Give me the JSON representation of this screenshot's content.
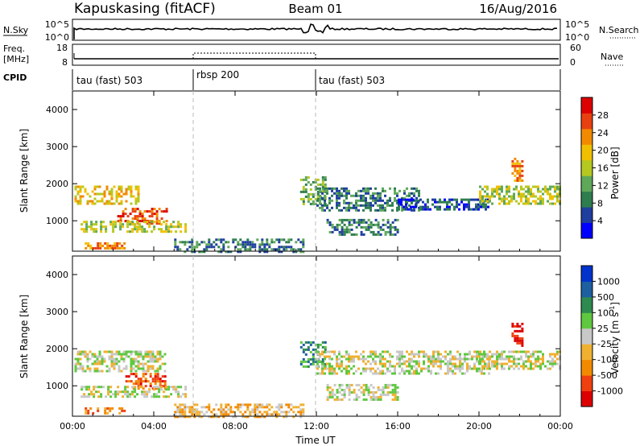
{
  "header": {
    "station": "Kapuskasing (fitACF)",
    "beam": "Beam 01",
    "date": "16/Aug/2016"
  },
  "strips": {
    "nsky_label": "N.Sky",
    "nsky_ticks": [
      "10^5",
      "10^0"
    ],
    "nsearch_label": "N.Search",
    "nsearch_ticks": [
      "10^5",
      "10^0"
    ],
    "freq_label_line1": "Freq.",
    "freq_label_line2": "[MHz]",
    "freq_ticks": [
      "18",
      "8"
    ],
    "nave_label": "Nave",
    "nave_ticks": [
      "60",
      "0"
    ],
    "cpid_label": "CPID",
    "cpid_segments": [
      {
        "label": "tau (fast) 503",
        "start_hour": 0
      },
      {
        "label": "rbsp 200",
        "start_hour": 6
      },
      {
        "label": "tau (fast) 503",
        "start_hour": 12
      }
    ]
  },
  "chart_data": [
    {
      "type": "heatmap",
      "panel": "power",
      "ylabel": "Slant Range [km]",
      "xlabel": "",
      "ylim": [
        180,
        4500
      ],
      "xlim": [
        0,
        24
      ],
      "yticks": [
        "4000",
        "3000",
        "2000",
        "1000"
      ],
      "xticks": [
        "00:00",
        "04:00",
        "08:00",
        "12:00",
        "16:00",
        "20:00",
        "00:00"
      ],
      "colorbar": {
        "label": "Power [dB]",
        "ticks": [
          "28",
          "24",
          "20",
          "16",
          "12",
          "8",
          "4"
        ],
        "colors": [
          "#0000ff",
          "#1e3f9e",
          "#2e7d4f",
          "#5fa85a",
          "#b5c820",
          "#f0c000",
          "#f28a00",
          "#e84010",
          "#dd0000"
        ]
      },
      "echo_bands": [
        {
          "t0": 0.1,
          "t1": 3.2,
          "r0": 1450,
          "r1": 1950,
          "level": 5
        },
        {
          "t0": 2.2,
          "t1": 4.6,
          "r0": 950,
          "r1": 1350,
          "level": 7
        },
        {
          "t0": 0.4,
          "t1": 5.6,
          "r0": 700,
          "r1": 1000,
          "level": 4
        },
        {
          "t0": 0.6,
          "t1": 2.6,
          "r0": 250,
          "r1": 420,
          "level": 6
        },
        {
          "t0": 5.0,
          "t1": 11.4,
          "r0": 180,
          "r1": 520,
          "level": 2
        },
        {
          "t0": 11.2,
          "t1": 12.4,
          "r0": 1450,
          "r1": 2200,
          "level": 3
        },
        {
          "t0": 12.0,
          "t1": 17.0,
          "r0": 1300,
          "r1": 1900,
          "level": 2
        },
        {
          "t0": 16.0,
          "t1": 20.5,
          "r0": 1300,
          "r1": 1600,
          "level": 1
        },
        {
          "t0": 20.0,
          "t1": 24.0,
          "r0": 1450,
          "r1": 1950,
          "level": 4
        },
        {
          "t0": 12.5,
          "t1": 16.0,
          "r0": 650,
          "r1": 1050,
          "level": 2
        },
        {
          "t0": 21.6,
          "t1": 22.1,
          "r0": 2100,
          "r1": 2700,
          "level": 6
        }
      ]
    },
    {
      "type": "heatmap",
      "panel": "velocity",
      "ylabel": "Slant Range [km]",
      "xlabel": "Time UT",
      "ylim": [
        180,
        4500
      ],
      "xlim": [
        0,
        24
      ],
      "yticks": [
        "4000",
        "3000",
        "2000",
        "1000"
      ],
      "xticks": [
        "00:00",
        "04:00",
        "08:00",
        "12:00",
        "16:00",
        "20:00",
        "00:00"
      ],
      "colorbar": {
        "label": "Velocity [m s",
        "label_sup": "-1",
        "label_end": "]",
        "ticks": [
          "1000",
          "500",
          "100",
          "25",
          "-25",
          "-100",
          "-500",
          "-1000"
        ],
        "colors": [
          "#dd0000",
          "#f04010",
          "#f28a00",
          "#f0b030",
          "#c8c8c8",
          "#5fc840",
          "#2e8a4f",
          "#1e5fa0",
          "#0033cc"
        ]
      },
      "echo_bands": [
        {
          "t0": 0.1,
          "t1": 4.6,
          "r0": 1400,
          "r1": 1950,
          "level": 4
        },
        {
          "t0": 2.6,
          "t1": 4.6,
          "r0": 950,
          "r1": 1350,
          "level": 1
        },
        {
          "t0": 0.4,
          "t1": 5.6,
          "r0": 700,
          "r1": 1000,
          "level": 4
        },
        {
          "t0": 0.6,
          "t1": 2.6,
          "r0": 250,
          "r1": 420,
          "level": 2
        },
        {
          "t0": 5.0,
          "t1": 11.4,
          "r0": 180,
          "r1": 520,
          "level": 3
        },
        {
          "t0": 11.2,
          "t1": 12.4,
          "r0": 1500,
          "r1": 2200,
          "level": 6
        },
        {
          "t0": 12.0,
          "t1": 20.5,
          "r0": 1300,
          "r1": 1950,
          "level": 4
        },
        {
          "t0": 20.0,
          "t1": 24.0,
          "r0": 1450,
          "r1": 1950,
          "level": 4
        },
        {
          "t0": 12.5,
          "t1": 16.0,
          "r0": 650,
          "r1": 1050,
          "level": 4
        },
        {
          "t0": 21.6,
          "t1": 22.1,
          "r0": 2100,
          "r1": 2700,
          "level": 0
        }
      ]
    }
  ]
}
